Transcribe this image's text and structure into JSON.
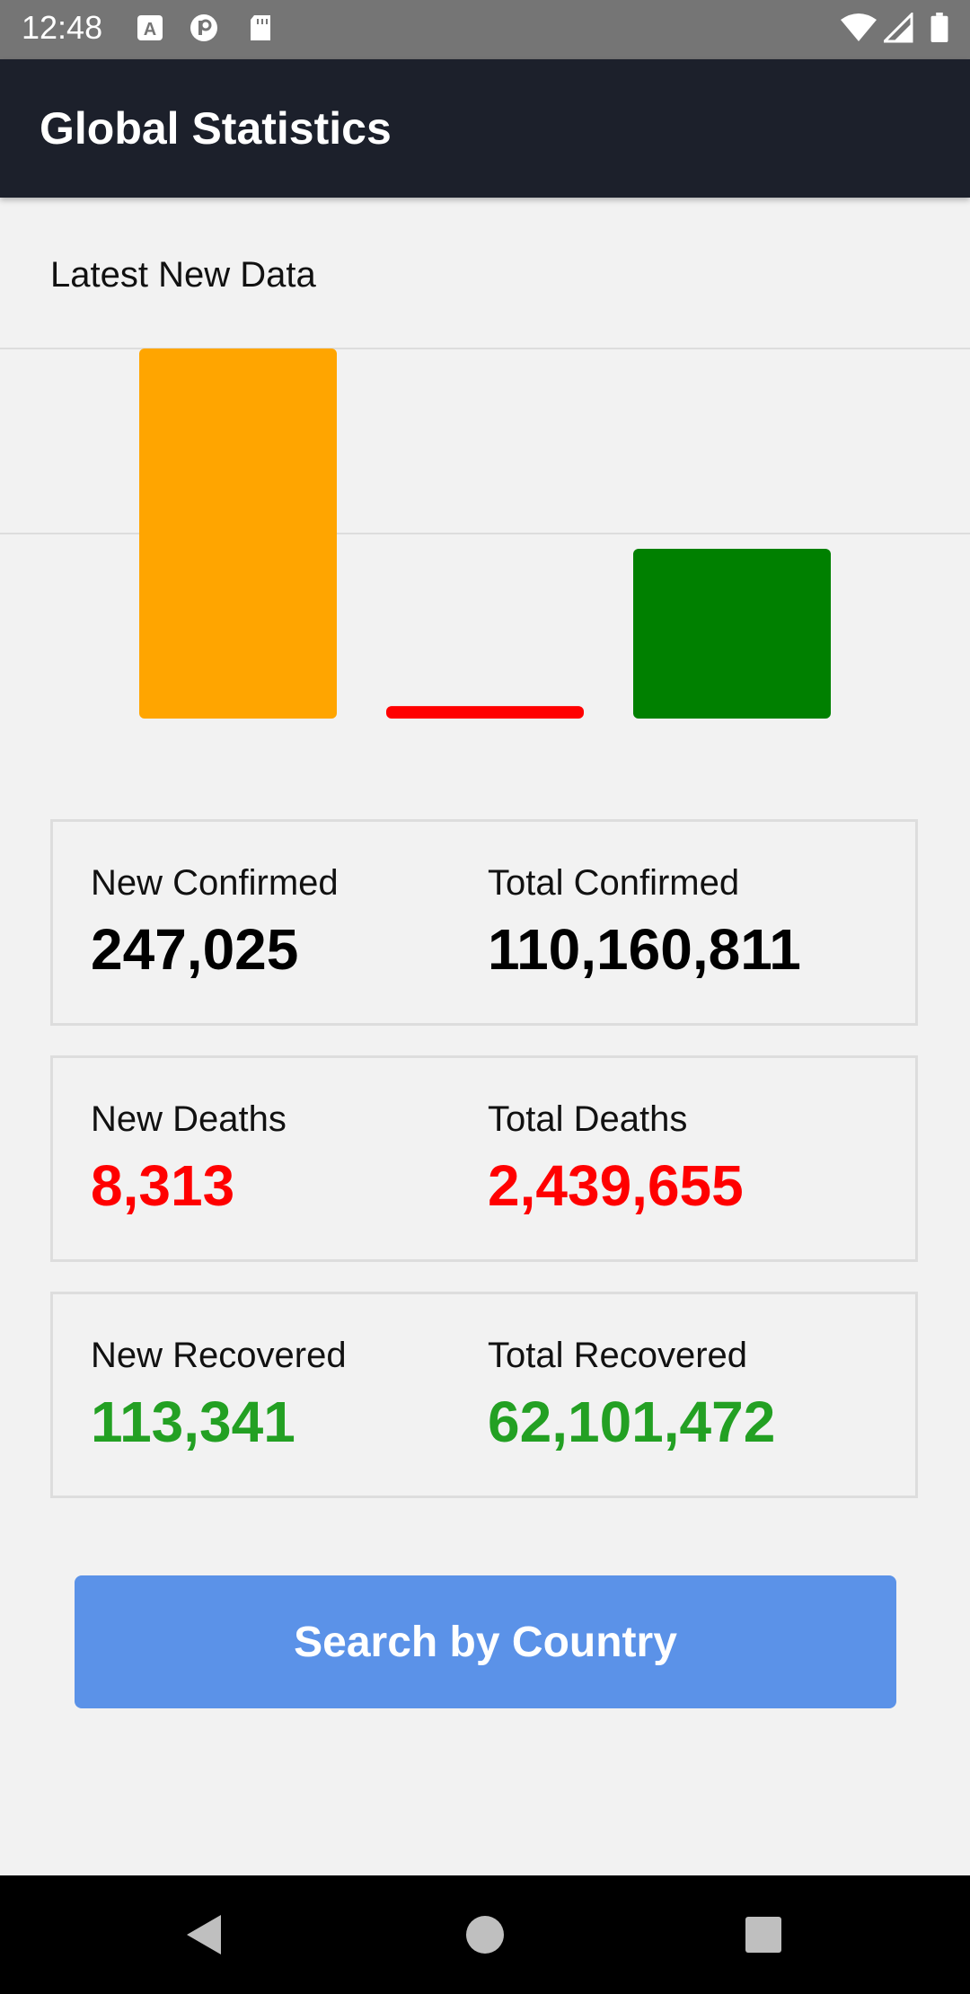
{
  "status_bar": {
    "time": "12:48",
    "icons_left": [
      "a-icon",
      "p-icon",
      "sd-card-icon"
    ],
    "icons_right": [
      "wifi-icon",
      "signal-icon",
      "battery-icon"
    ]
  },
  "app_bar": {
    "title": "Global Statistics"
  },
  "section": {
    "label": "Latest New Data"
  },
  "chart_data": {
    "type": "bar",
    "categories": [
      "",
      "",
      ""
    ],
    "values": [
      247025,
      8313,
      113341
    ],
    "colors": [
      "#ffa500",
      "#ff0000",
      "#008000"
    ],
    "gridlines": true
  },
  "stats": [
    {
      "left_label": "New Confirmed",
      "left_value": "247,025",
      "right_label": "Total Confirmed",
      "right_value": "110,160,811",
      "color": "#000000"
    },
    {
      "left_label": "New Deaths",
      "left_value": "8,313",
      "right_label": "Total Deaths",
      "right_value": "2,439,655",
      "color": "#ff0000"
    },
    {
      "left_label": "New Recovered",
      "left_value": "113,341",
      "right_label": "Total Recovered",
      "right_value": "62,101,472",
      "color": "#23a023"
    }
  ],
  "search_button": {
    "label": "Search by Country",
    "color": "#5b92e8"
  },
  "nav_bar": {
    "icons": [
      "back-icon",
      "home-icon",
      "recents-icon"
    ]
  }
}
